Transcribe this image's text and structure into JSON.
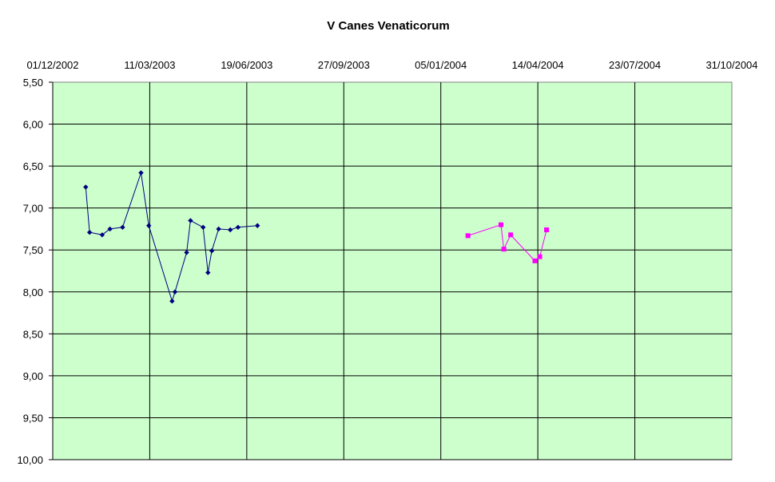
{
  "chart_data": {
    "type": "line",
    "title": "V Canes Venaticorum",
    "x_axis": {
      "type": "date",
      "position": "top",
      "range": [
        "2002-12-01",
        "2004-10-31"
      ],
      "tick_labels": [
        "01/12/2002",
        "11/03/2003",
        "19/06/2003",
        "27/09/2003",
        "05/01/2004",
        "14/04/2004",
        "23/07/2004",
        "31/10/2004"
      ]
    },
    "y_axis": {
      "reversed": true,
      "range": [
        5.5,
        10.0
      ],
      "tick_labels": [
        "5,50",
        "6,00",
        "6,50",
        "7,00",
        "7,50",
        "8,00",
        "8,50",
        "9,00",
        "9,50",
        "10,00"
      ]
    },
    "grid": true,
    "plot_background": "#ccffcc",
    "series": [
      {
        "color": "#000080",
        "marker": "diamond",
        "points": [
          [
            "2003-01-04",
            6.75
          ],
          [
            "2003-01-08",
            7.29
          ],
          [
            "2003-01-21",
            7.32
          ],
          [
            "2003-01-29",
            7.25
          ],
          [
            "2003-02-11",
            7.23
          ],
          [
            "2003-03-02",
            6.58
          ],
          [
            "2003-03-10",
            7.21
          ],
          [
            "2003-04-03",
            8.11
          ],
          [
            "2003-04-06",
            8.0
          ],
          [
            "2003-04-18",
            7.53
          ],
          [
            "2003-04-22",
            7.15
          ],
          [
            "2003-05-05",
            7.23
          ],
          [
            "2003-05-10",
            7.77
          ],
          [
            "2003-05-14",
            7.51
          ],
          [
            "2003-05-21",
            7.25
          ],
          [
            "2003-06-02",
            7.26
          ],
          [
            "2003-06-10",
            7.23
          ],
          [
            "2003-06-30",
            7.21
          ]
        ]
      },
      {
        "color": "#ff00ff",
        "marker": "square",
        "points": [
          [
            "2004-02-02",
            7.33
          ],
          [
            "2004-03-07",
            7.2
          ],
          [
            "2004-03-10",
            7.49
          ],
          [
            "2004-03-17",
            7.32
          ],
          [
            "2004-04-11",
            7.63
          ],
          [
            "2004-04-16",
            7.58
          ],
          [
            "2004-04-23",
            7.26
          ]
        ]
      }
    ]
  }
}
